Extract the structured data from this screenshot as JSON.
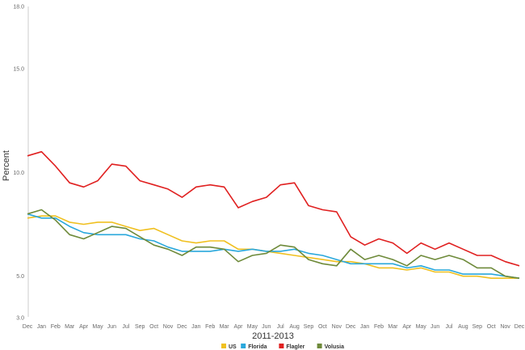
{
  "chart_data": {
    "type": "line",
    "xlabel": "2011-2013",
    "ylabel": "Percent",
    "ylim": [
      3.0,
      18.0
    ],
    "yticks": [
      "3.0",
      "5.0",
      "10.0",
      "15.0",
      "18.0"
    ],
    "categories": [
      "Dec",
      "Jan",
      "Feb",
      "Mar",
      "Apr",
      "May",
      "Jun",
      "Jul",
      "Sep",
      "Oct",
      "Nov",
      "Dec",
      "Jan",
      "Feb",
      "Mar",
      "Apr",
      "May",
      "Jun",
      "Jul",
      "Aug",
      "Sep",
      "Oct",
      "Nov",
      "Dec",
      "Jan",
      "Feb",
      "Mar",
      "Apr",
      "May",
      "Jun",
      "Jul",
      "Aug",
      "Sep",
      "Oct",
      "Nov",
      "Dec"
    ],
    "grid": false,
    "legend_position": "bottom",
    "series": [
      {
        "name": "US",
        "color": "#f0c020",
        "values": [
          7.8,
          7.9,
          7.9,
          7.6,
          7.5,
          7.6,
          7.6,
          7.4,
          7.2,
          7.3,
          7.0,
          6.7,
          6.6,
          6.7,
          6.7,
          6.3,
          6.3,
          6.2,
          6.1,
          6.0,
          5.9,
          5.8,
          5.7,
          5.7,
          5.6,
          5.4,
          5.4,
          5.3,
          5.4,
          5.2,
          5.2,
          5.0,
          5.0,
          4.9,
          4.9,
          4.9
        ]
      },
      {
        "name": "Florida",
        "color": "#2aa8dc",
        "values": [
          8.0,
          7.8,
          7.8,
          7.4,
          7.1,
          7.0,
          7.0,
          7.0,
          6.8,
          6.7,
          6.4,
          6.2,
          6.2,
          6.2,
          6.3,
          6.2,
          6.3,
          6.2,
          6.2,
          6.3,
          6.1,
          6.0,
          5.8,
          5.6,
          5.6,
          5.6,
          5.6,
          5.4,
          5.5,
          5.3,
          5.3,
          5.1,
          5.1,
          5.1,
          5.0,
          4.9
        ]
      },
      {
        "name": "Flagler",
        "color": "#e02020",
        "values": [
          10.8,
          11.0,
          10.3,
          9.5,
          9.3,
          9.6,
          10.4,
          10.3,
          9.6,
          9.4,
          9.2,
          8.8,
          9.3,
          9.4,
          9.3,
          8.3,
          8.6,
          8.8,
          9.4,
          9.5,
          8.4,
          8.2,
          8.1,
          6.9,
          6.5,
          6.8,
          6.6,
          6.1,
          6.6,
          6.3,
          6.6,
          6.3,
          6.0,
          6.0,
          5.7,
          5.5
        ]
      },
      {
        "name": "Volusia",
        "color": "#6e8a3a",
        "values": [
          8.0,
          8.2,
          7.7,
          7.0,
          6.8,
          7.1,
          7.4,
          7.3,
          6.9,
          6.5,
          6.3,
          6.0,
          6.4,
          6.4,
          6.3,
          5.7,
          6.0,
          6.1,
          6.5,
          6.4,
          5.8,
          5.6,
          5.5,
          6.3,
          5.8,
          6.0,
          5.8,
          5.5,
          6.0,
          5.8,
          6.0,
          5.8,
          5.4,
          5.4,
          5.0,
          4.9
        ]
      }
    ]
  }
}
